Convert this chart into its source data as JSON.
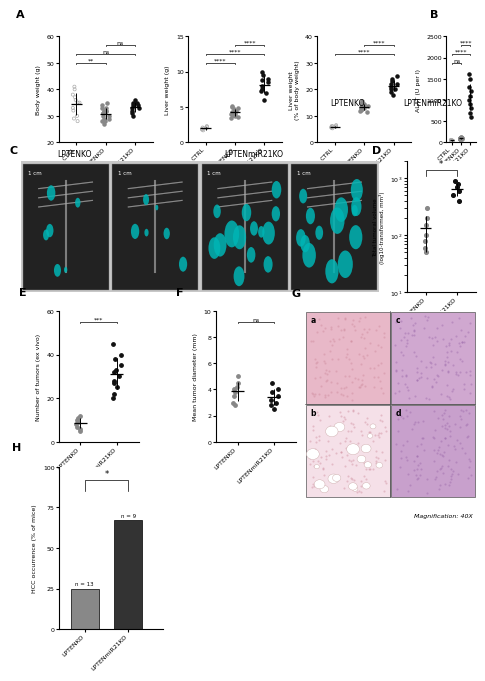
{
  "panel_A1": {
    "groups": [
      "CTRL",
      "LPTENKO",
      "LPTENmiR21KO"
    ],
    "data": {
      "CTRL": [
        41,
        38,
        35,
        33,
        32,
        30,
        29,
        28,
        35,
        36,
        37,
        40
      ],
      "LPTENKO": [
        34,
        33,
        32,
        31,
        30,
        29,
        28,
        27,
        33,
        32,
        31,
        30,
        29,
        28,
        35,
        32
      ],
      "LPTENmiR21KO": [
        36,
        35,
        34,
        33,
        32,
        31,
        30,
        34,
        35,
        33
      ]
    },
    "ylim": [
      20,
      60
    ],
    "yticks": [
      20,
      30,
      40,
      50,
      60
    ],
    "ylabel": "Body weight (g)",
    "sig": [
      [
        "CTRL",
        "LPTENKO",
        "**"
      ],
      [
        "CTRL",
        "LPTENmiR21KO",
        "ns"
      ],
      [
        "LPTENKO",
        "LPTENmiR21KO",
        "ns"
      ]
    ]
  },
  "panel_A2": {
    "groups": [
      "CTRL",
      "LPTENKO",
      "LPTENmiR21KO"
    ],
    "data": {
      "CTRL": [
        2.0,
        1.8,
        2.2,
        1.9,
        2.1,
        2.0,
        1.7,
        2.3
      ],
      "LPTENKO": [
        3.5,
        4.0,
        4.5,
        5.0,
        4.2,
        3.8,
        4.1,
        3.9,
        4.3,
        4.7,
        5.2,
        4.8,
        3.6,
        4.0,
        4.4,
        3.7
      ],
      "LPTENmiR21KO": [
        6.0,
        7.0,
        8.5,
        9.0,
        8.0,
        7.5,
        9.5,
        10.0,
        8.8,
        7.2
      ]
    },
    "ylim": [
      0,
      15
    ],
    "yticks": [
      0,
      5,
      10,
      15
    ],
    "ylabel": "Liver weight (g)",
    "sig": [
      [
        "CTRL",
        "LPTENKO",
        "****"
      ],
      [
        "CTRL",
        "LPTENmiR21KO",
        "****"
      ],
      [
        "LPTENKO",
        "LPTENmiR21KO",
        "****"
      ]
    ]
  },
  "panel_A3": {
    "groups": [
      "CTRL",
      "LPTENKO",
      "LPTENmiR21KO"
    ],
    "data": {
      "CTRL": [
        6,
        5.5,
        6.5,
        5.8,
        6.2,
        5.9,
        5.3,
        6.1
      ],
      "LPTENKO": [
        12,
        13,
        14,
        15,
        13.5,
        12.5,
        14.5,
        13.2,
        12.8,
        14.2,
        15.5,
        11.5,
        13.8,
        12.2
      ],
      "LPTENmiR21KO": [
        18,
        20,
        22,
        25,
        21,
        19,
        23,
        24,
        22,
        20
      ]
    },
    "ylim": [
      0,
      40
    ],
    "yticks": [
      0,
      10,
      20,
      30,
      40
    ],
    "ylabel": "Liver weight\n(% of body weight)",
    "sig": [
      [
        "CTRL",
        "LPTENmiR21KO",
        "****"
      ],
      [
        "LPTENKO",
        "LPTENmiR21KO",
        "****"
      ]
    ]
  },
  "panel_B": {
    "groups": [
      "CTRL",
      "LPTENKO",
      "LPTENmiR21KO"
    ],
    "data": {
      "CTRL": [
        50,
        30,
        40,
        60,
        45,
        35,
        55,
        42,
        38,
        48
      ],
      "LPTENKO": [
        80,
        100,
        120,
        90,
        110,
        95,
        85,
        105,
        75,
        115,
        88,
        92,
        78,
        102,
        98,
        82
      ],
      "LPTENmiR21KO": [
        1500,
        1200,
        800,
        600,
        1000,
        1600,
        1100,
        900,
        700,
        1300
      ]
    },
    "ylim": [
      0,
      2500
    ],
    "yticks": [
      0,
      500,
      1000,
      1500,
      2000,
      2500
    ],
    "ylabel": "ALAT (U per l)",
    "sig": [
      [
        "CTRL",
        "LPTENKO",
        "ns"
      ],
      [
        "CTRL",
        "LPTENmiR21KO",
        "****"
      ],
      [
        "LPTENKO",
        "LPTENmiR21KO",
        "****"
      ]
    ]
  },
  "panel_D": {
    "groups": [
      "LPTENKO",
      "LPTENmiR21KO"
    ],
    "data": {
      "LPTENKO": [
        100,
        200,
        50,
        150,
        80,
        300,
        60
      ],
      "LPTENmiR21KO": [
        400,
        500,
        800,
        600,
        700,
        900
      ]
    },
    "ylabel": "Total tumoral volume\n(log10-transformed, mm³)",
    "sig": "*"
  },
  "panel_E": {
    "groups": [
      "LPTENKO",
      "LPTENmiR21KO"
    ],
    "data": {
      "LPTENKO": [
        8,
        12,
        5,
        10,
        7,
        9,
        6,
        11
      ],
      "LPTENmiR21KO": [
        25,
        30,
        40,
        35,
        28,
        22,
        38,
        32,
        27,
        45,
        20,
        33
      ]
    },
    "ylim": [
      0,
      60
    ],
    "yticks": [
      0,
      20,
      40,
      60
    ],
    "ylabel": "Number of tumors (ex vivo)",
    "sig": "***"
  },
  "panel_F": {
    "groups": [
      "LPTENKO",
      "LPTENmiR21KO"
    ],
    "data": {
      "LPTENKO": [
        3.0,
        4.5,
        5.0,
        3.5,
        4.0,
        3.8,
        4.2,
        2.8
      ],
      "LPTENmiR21KO": [
        2.5,
        3.0,
        4.0,
        3.5,
        2.8,
        3.2,
        4.5,
        3.8
      ]
    },
    "ylim": [
      0,
      10
    ],
    "yticks": [
      0,
      2,
      4,
      6,
      8,
      10
    ],
    "ylabel": "Mean tumor diameter (mm)",
    "sig": "ns"
  },
  "panel_H": {
    "groups": [
      "LPTENKO",
      "LPTENmiR21KO"
    ],
    "values": [
      25,
      67
    ],
    "n_labels": [
      "n = 13",
      "n = 9"
    ],
    "colors": [
      "#888888",
      "#333333"
    ],
    "sig": "*",
    "ylim": [
      0,
      100
    ],
    "yticks": [
      0,
      25,
      50,
      75,
      100
    ],
    "ylabel": "HCC occurrence (% of mice)"
  },
  "ctrl_color": "#aaaaaa",
  "lptenko_color": "#888888",
  "lptenmir21ko_color": "#111111"
}
